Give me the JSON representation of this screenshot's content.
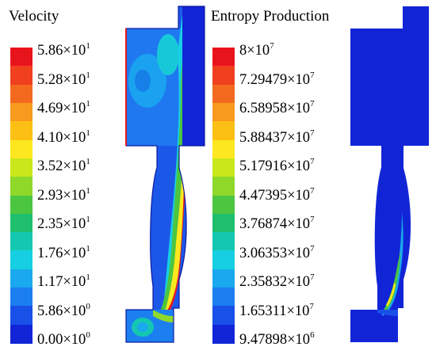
{
  "panels": [
    {
      "title": "Velocity",
      "colorbar": {
        "colors": [
          "#e8141c",
          "#f0401f",
          "#f36a1f",
          "#f89a1d",
          "#fcc015",
          "#fde71e",
          "#c9e81b",
          "#8fd82a",
          "#4cc540",
          "#1fbf6e",
          "#14c7b0",
          "#17cfe2",
          "#1aa8ee",
          "#1b7ff0",
          "#1850e8",
          "#1225d6"
        ],
        "ticks": [
          {
            "mantissa": "5.86",
            "exp": "1"
          },
          {
            "mantissa": "5.28",
            "exp": "1"
          },
          {
            "mantissa": "4.69",
            "exp": "1"
          },
          {
            "mantissa": "4.10",
            "exp": "1"
          },
          {
            "mantissa": "3.52",
            "exp": "1"
          },
          {
            "mantissa": "2.93",
            "exp": "1"
          },
          {
            "mantissa": "2.35",
            "exp": "1"
          },
          {
            "mantissa": "1.76",
            "exp": "1"
          },
          {
            "mantissa": "1.17",
            "exp": "1"
          },
          {
            "mantissa": "5.86",
            "exp": "0"
          },
          {
            "mantissa": "0.00",
            "exp": "0"
          }
        ]
      }
    },
    {
      "title": "Entropy Production",
      "colorbar": {
        "colors": [
          "#e8141c",
          "#f0401f",
          "#f36a1f",
          "#f89a1d",
          "#fcc015",
          "#fde71e",
          "#c9e81b",
          "#8fd82a",
          "#4cc540",
          "#1fbf6e",
          "#14c7b0",
          "#17cfe2",
          "#1aa8ee",
          "#1b7ff0",
          "#1850e8",
          "#1225d6"
        ],
        "ticks": [
          {
            "mantissa": "8",
            "exp": "7"
          },
          {
            "mantissa": "7.29479",
            "exp": "7"
          },
          {
            "mantissa": "6.58958",
            "exp": "7"
          },
          {
            "mantissa": "5.88437",
            "exp": "7"
          },
          {
            "mantissa": "5.17916",
            "exp": "7"
          },
          {
            "mantissa": "4.47395",
            "exp": "7"
          },
          {
            "mantissa": "3.76874",
            "exp": "7"
          },
          {
            "mantissa": "3.06353",
            "exp": "7"
          },
          {
            "mantissa": "2.35832",
            "exp": "7"
          },
          {
            "mantissa": "1.65311",
            "exp": "7"
          },
          {
            "mantissa": "9.47898",
            "exp": "6"
          }
        ]
      }
    }
  ],
  "times_symbol": "×",
  "base": "10"
}
